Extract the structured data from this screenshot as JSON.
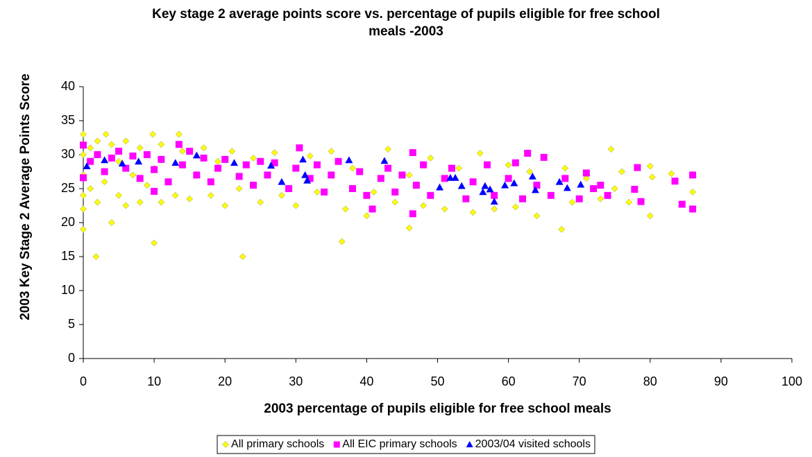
{
  "chart_data": {
    "type": "scatter",
    "title": "Key stage 2 average points score vs. percentage of pupils eligible for free school meals -2003",
    "x_label": "2003 percentage of pupils eligible for free school meals",
    "y_label": "2003 Key Stage 2 Average Points Score",
    "xlim": [
      0,
      100
    ],
    "xticks": [
      0,
      10,
      20,
      30,
      40,
      50,
      60,
      70,
      80,
      90,
      100
    ],
    "ylim": [
      0,
      40
    ],
    "yticks": [
      0,
      5,
      10,
      15,
      20,
      25,
      30,
      35,
      40
    ],
    "legend": "bottom",
    "series": [
      {
        "name": "All primary schools",
        "color": "#ffff00",
        "marker": "diamond",
        "x": [
          0,
          0,
          0,
          0,
          1,
          1,
          2,
          2,
          3,
          4,
          5,
          5,
          6,
          6,
          7,
          8,
          8,
          9,
          10,
          11,
          11,
          12,
          13,
          14,
          15,
          16,
          17,
          18,
          19,
          20,
          21,
          22,
          24,
          25,
          27,
          28,
          30,
          32,
          33,
          35,
          37,
          38,
          40,
          41,
          43,
          44,
          46,
          48,
          49,
          51,
          53,
          55,
          56,
          58,
          60,
          61,
          63,
          64,
          66,
          68,
          69,
          71,
          73,
          75,
          76,
          77,
          0,
          1.8,
          10,
          22.5,
          36.5,
          4,
          46,
          67.5,
          80,
          0,
          3.2,
          9.8,
          13.5,
          74.5,
          83,
          86,
          80.3,
          80
        ],
        "values": [
          22,
          24,
          27,
          30,
          31,
          25,
          32,
          23,
          26,
          31.5,
          24,
          29,
          32,
          22.5,
          27,
          23,
          31,
          25.5,
          28,
          23,
          31.5,
          26,
          24,
          30.5,
          23.5,
          27,
          31,
          24,
          29,
          22.5,
          30.5,
          25,
          29.5,
          23,
          30.3,
          24,
          22.5,
          29.8,
          24.5,
          30.5,
          22,
          28,
          21,
          24.5,
          30.8,
          23,
          27,
          22.5,
          29.5,
          22,
          28,
          21.5,
          30.2,
          22,
          28.5,
          22.3,
          27.5,
          21,
          24,
          28,
          23,
          26.5,
          23.5,
          25,
          27.5,
          23,
          19,
          15,
          17,
          15,
          17.2,
          20,
          19.2,
          19,
          21,
          33,
          33,
          33,
          33,
          30.8,
          27.2,
          24.5,
          26.7,
          28.3
        ]
      },
      {
        "name": "All EIC primary schools",
        "color": "#ff00ff",
        "marker": "square",
        "x": [
          1,
          2,
          3,
          4,
          5,
          6,
          7,
          8,
          9,
          10,
          11,
          12,
          14,
          15,
          16,
          17,
          18,
          19,
          20,
          22,
          23,
          24,
          25,
          26,
          27,
          29,
          30,
          32,
          33,
          34,
          35,
          36,
          38,
          39,
          40,
          42,
          43,
          44,
          45,
          47,
          48,
          49,
          51,
          52,
          54,
          55,
          57,
          58,
          60,
          61,
          62,
          64,
          65,
          66,
          68,
          70,
          71,
          72,
          73,
          74,
          86,
          86,
          84.5,
          83.5,
          78.2,
          77.8,
          78.7,
          46.5,
          62.7,
          30.5,
          13.5,
          0,
          0,
          10,
          46.5,
          40.8
        ],
        "values": [
          29,
          30,
          27.5,
          29.5,
          30.5,
          28,
          29.8,
          26.5,
          30,
          27.8,
          29.3,
          26,
          28.5,
          30.5,
          27,
          29.5,
          26,
          28,
          29.3,
          26.8,
          28.5,
          25.5,
          29,
          27,
          28.8,
          25,
          28,
          26.5,
          28.5,
          24.5,
          27,
          29,
          25,
          27.5,
          24,
          26.5,
          28,
          24.5,
          27,
          25.5,
          28.5,
          24,
          26.5,
          28,
          23.5,
          26,
          28.5,
          24,
          26.5,
          28.8,
          23.5,
          25.5,
          29.6,
          24,
          26.5,
          23.5,
          27.3,
          25,
          25.5,
          24,
          27,
          22,
          22.7,
          26.1,
          28.1,
          24.9,
          23.1,
          30.3,
          30.2,
          31,
          31.5,
          31.4,
          26.6,
          24.6,
          21.3,
          22
        ]
      },
      {
        "name": "2003/04 visited schools",
        "color": "#0000ff",
        "marker": "triangle",
        "x": [
          0.5,
          3,
          5.5,
          7.8,
          13,
          16,
          21.3,
          26.5,
          28,
          31,
          31.3,
          31.6,
          37.5,
          42.5,
          50.3,
          51.8,
          52.5,
          53.4,
          56.4,
          56.7,
          57.4,
          58,
          59.5,
          60.8,
          63.4,
          63.8,
          67.2,
          68.3,
          70.2
        ],
        "values": [
          28.3,
          29.2,
          28.7,
          29,
          28.8,
          29.9,
          28.8,
          28.4,
          26,
          29.3,
          27,
          26.2,
          29.2,
          29.1,
          25.2,
          26.6,
          26.6,
          25.4,
          24.5,
          25.4,
          24.9,
          23.1,
          25.5,
          25.8,
          26.8,
          24.8,
          26,
          25.1,
          25.6
        ]
      }
    ]
  }
}
